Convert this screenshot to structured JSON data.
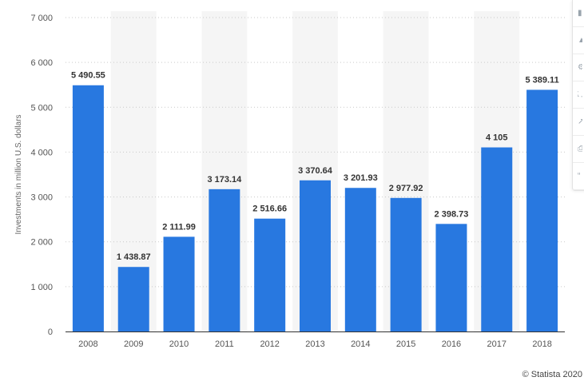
{
  "chart_data": {
    "type": "bar",
    "categories": [
      "2008",
      "2009",
      "2010",
      "2011",
      "2012",
      "2013",
      "2014",
      "2015",
      "2016",
      "2017",
      "2018"
    ],
    "values": [
      5490.55,
      1438.87,
      2111.99,
      3173.14,
      2516.66,
      3370.64,
      3201.93,
      2977.92,
      2398.73,
      4105,
      5389.11
    ],
    "value_labels": [
      "5 490.55",
      "1 438.87",
      "2 111.99",
      "3 173.14",
      "2 516.66",
      "3 370.64",
      "3 201.93",
      "2 977.92",
      "2 398.73",
      "4 105",
      "5 389.11"
    ],
    "ylabel": "Investments in million U.S. dollars",
    "ylim": [
      0,
      7000
    ],
    "yticks": [
      0,
      1000,
      2000,
      3000,
      4000,
      5000,
      6000,
      7000
    ],
    "ytick_labels": [
      "0",
      "1 000",
      "2 000",
      "3 000",
      "4 000",
      "5 000",
      "6 000",
      "7 000"
    ],
    "grid": true,
    "grid_style": "dotted horizontal",
    "alternating_column_shading": true,
    "colors": {
      "bar": "#2878e0",
      "shade": "#f5f5f5",
      "grid": "#c9c9c9"
    }
  },
  "credit": "© Statista 2020",
  "toolbar": {
    "buttons": [
      {
        "icon": "bookmark-icon"
      },
      {
        "icon": "bell-icon"
      },
      {
        "icon": "settings-icon"
      },
      {
        "icon": "fullscreen-icon"
      },
      {
        "icon": "share-icon"
      },
      {
        "icon": "print-icon"
      },
      {
        "icon": "quote-icon"
      }
    ]
  }
}
